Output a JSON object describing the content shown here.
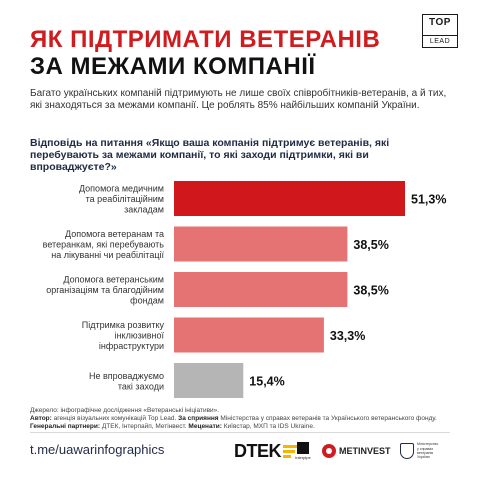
{
  "header": {
    "title_line1": "ЯК ПІДТРИМАТИ ВЕТЕРАНІВ",
    "title_line2": "ЗА МЕЖАМИ КОМПАНІЇ",
    "logo_top": "TOP",
    "logo_bottom": "LEAD"
  },
  "intro": "Багато українських компаній підтримують не лише своїх співробітників-ветеранів, а й тих, які знаходяться за межами компанії. Це роблять 85% найбільших компаній України.",
  "question": "Відповідь на питання «Якщо ваша компанія підтримує ветеранів, які перебувають за межами компанії, то які заходи підтримки, які ви впроваджуєте?»",
  "chart_data": {
    "type": "bar",
    "orientation": "horizontal",
    "categories": [
      [
        "Допомога медичним",
        "та реабілітаційним",
        "закладам"
      ],
      [
        "Допомога ветеранам та",
        "ветеранкам, які перебувають",
        "на лікуванні чи реабілітації"
      ],
      [
        "Допомога ветеранським",
        "організаціям та благодійним",
        "фондам"
      ],
      [
        "Підтримка розвитку",
        "інклюзивної",
        "інфраструктури"
      ],
      [
        "Не впроваджуємо",
        "такі заходи"
      ]
    ],
    "values": [
      51.3,
      38.5,
      38.5,
      33.3,
      15.4
    ],
    "value_labels": [
      "51,3%",
      "38,5%",
      "38,5%",
      "33,3%",
      "15,4%"
    ],
    "colors": [
      "#d0171c",
      "#e57373",
      "#e57373",
      "#e57373",
      "#b5b5b5"
    ],
    "xlim": [
      0,
      51.3
    ]
  },
  "footnote": {
    "source_label": "Джерело:",
    "source_text": "інфографічне дослідження «Ветеранські ініціативи».",
    "author_label": "Автор:",
    "author_text": "агенція візуальних комунікацій Top Lead.",
    "support_label": "За сприяння",
    "support_text": "Міністерства у справах ветеранів та Українського ветеранського фонду.",
    "partners_label": "Генеральні партнери:",
    "partners_text": "ДТЕК, Інтерпайп, Метінвест.",
    "patrons_label": "Меценати:",
    "patrons_text": "Київстар, МХП та IDS Ukraine."
  },
  "footer": {
    "link": "t.me/uawarinfographics",
    "dtek": "DTEK",
    "interpipe": "interpipe",
    "metinvest": "METINVEST",
    "ministry": [
      "Міністерство",
      "у справах",
      "ветеранів",
      "України"
    ]
  }
}
